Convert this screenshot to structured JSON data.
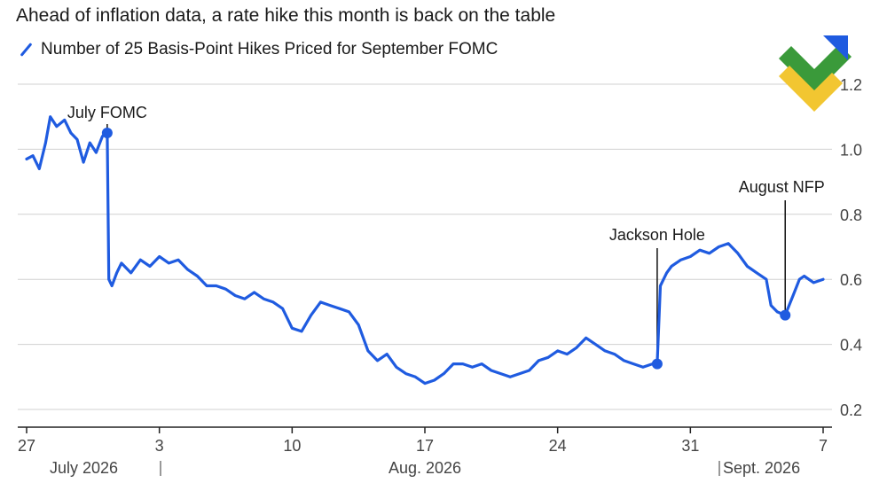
{
  "title": "Ahead of inflation data, a rate hike this month is back on the table",
  "legend": {
    "label": "Number of 25 Basis-Point Hikes Priced for September FOMC"
  },
  "colors": {
    "line": "#1f5be0",
    "grid": "#d0d0d0",
    "text": "#1a1a1a",
    "muted": "#444444"
  },
  "chart_data": {
    "type": "line",
    "title": "Ahead of inflation data, a rate hike this month is back on the table",
    "series": [
      {
        "name": "Number of 25 Basis-Point Hikes Priced for September FOMC",
        "points": [
          [
            "2026-07-27",
            0.97
          ],
          [
            "2026-07-27T08",
            0.98
          ],
          [
            "2026-07-27T16",
            0.94
          ],
          [
            "2026-07-28",
            1.02
          ],
          [
            "2026-07-28T06",
            1.1
          ],
          [
            "2026-07-28T14",
            1.07
          ],
          [
            "2026-07-29",
            1.09
          ],
          [
            "2026-07-29T08",
            1.05
          ],
          [
            "2026-07-29T16",
            1.03
          ],
          [
            "2026-07-30",
            0.96
          ],
          [
            "2026-07-30T08",
            1.02
          ],
          [
            "2026-07-30T16",
            0.99
          ],
          [
            "2026-07-31",
            1.04
          ],
          [
            "2026-07-31T06",
            1.05
          ],
          [
            "2026-07-31T08",
            0.6
          ],
          [
            "2026-07-31T12",
            0.58
          ],
          [
            "2026-07-31T18",
            0.62
          ],
          [
            "2026-08-01",
            0.65
          ],
          [
            "2026-08-01T12",
            0.62
          ],
          [
            "2026-08-02",
            0.66
          ],
          [
            "2026-08-02T12",
            0.64
          ],
          [
            "2026-08-03",
            0.67
          ],
          [
            "2026-08-03T12",
            0.65
          ],
          [
            "2026-08-04",
            0.66
          ],
          [
            "2026-08-04T12",
            0.63
          ],
          [
            "2026-08-05",
            0.61
          ],
          [
            "2026-08-05T12",
            0.58
          ],
          [
            "2026-08-06",
            0.58
          ],
          [
            "2026-08-06T12",
            0.57
          ],
          [
            "2026-08-07",
            0.55
          ],
          [
            "2026-08-07T12",
            0.54
          ],
          [
            "2026-08-08",
            0.56
          ],
          [
            "2026-08-08T12",
            0.54
          ],
          [
            "2026-08-09",
            0.53
          ],
          [
            "2026-08-09T12",
            0.51
          ],
          [
            "2026-08-10",
            0.45
          ],
          [
            "2026-08-10T12",
            0.44
          ],
          [
            "2026-08-11",
            0.49
          ],
          [
            "2026-08-11T12",
            0.53
          ],
          [
            "2026-08-12",
            0.52
          ],
          [
            "2026-08-12T12",
            0.51
          ],
          [
            "2026-08-13",
            0.5
          ],
          [
            "2026-08-13T12",
            0.46
          ],
          [
            "2026-08-14",
            0.38
          ],
          [
            "2026-08-14T12",
            0.35
          ],
          [
            "2026-08-15",
            0.37
          ],
          [
            "2026-08-15T12",
            0.33
          ],
          [
            "2026-08-16",
            0.31
          ],
          [
            "2026-08-16T12",
            0.3
          ],
          [
            "2026-08-17",
            0.28
          ],
          [
            "2026-08-17T12",
            0.29
          ],
          [
            "2026-08-18",
            0.31
          ],
          [
            "2026-08-18T12",
            0.34
          ],
          [
            "2026-08-19",
            0.34
          ],
          [
            "2026-08-19T12",
            0.33
          ],
          [
            "2026-08-20",
            0.34
          ],
          [
            "2026-08-20T12",
            0.32
          ],
          [
            "2026-08-21",
            0.31
          ],
          [
            "2026-08-21T12",
            0.3
          ],
          [
            "2026-08-22",
            0.31
          ],
          [
            "2026-08-22T12",
            0.32
          ],
          [
            "2026-08-23",
            0.35
          ],
          [
            "2026-08-23T12",
            0.36
          ],
          [
            "2026-08-24",
            0.38
          ],
          [
            "2026-08-24T12",
            0.37
          ],
          [
            "2026-08-25",
            0.39
          ],
          [
            "2026-08-25T12",
            0.42
          ],
          [
            "2026-08-26",
            0.4
          ],
          [
            "2026-08-26T12",
            0.38
          ],
          [
            "2026-08-27",
            0.37
          ],
          [
            "2026-08-27T12",
            0.35
          ],
          [
            "2026-08-28",
            0.34
          ],
          [
            "2026-08-28T12",
            0.33
          ],
          [
            "2026-08-29",
            0.34
          ],
          [
            "2026-08-29T06",
            0.34
          ],
          [
            "2026-08-29T10",
            0.58
          ],
          [
            "2026-08-29T18",
            0.62
          ],
          [
            "2026-08-30",
            0.64
          ],
          [
            "2026-08-30T12",
            0.66
          ],
          [
            "2026-08-31",
            0.67
          ],
          [
            "2026-08-31T12",
            0.69
          ],
          [
            "2026-09-01",
            0.68
          ],
          [
            "2026-09-01T12",
            0.7
          ],
          [
            "2026-09-02",
            0.71
          ],
          [
            "2026-09-02T12",
            0.68
          ],
          [
            "2026-09-03",
            0.64
          ],
          [
            "2026-09-03T12",
            0.62
          ],
          [
            "2026-09-04",
            0.6
          ],
          [
            "2026-09-04T06",
            0.52
          ],
          [
            "2026-09-04T14",
            0.5
          ],
          [
            "2026-09-05",
            0.49
          ],
          [
            "2026-09-05T10",
            0.55
          ],
          [
            "2026-09-05T18",
            0.6
          ],
          [
            "2026-09-06",
            0.61
          ],
          [
            "2026-09-06T12",
            0.59
          ],
          [
            "2026-09-07",
            0.6
          ]
        ]
      }
    ],
    "markers": [
      {
        "label": "July FOMC",
        "date": "2026-07-31T06",
        "value": 1.05
      },
      {
        "label": "Jackson Hole",
        "date": "2026-08-29T06",
        "value": 0.34
      },
      {
        "label": "August NFP",
        "date": "2026-09-05",
        "value": 0.49
      }
    ],
    "ylim": [
      0.2,
      1.2
    ],
    "yticks": [
      0.2,
      0.4,
      0.6,
      0.8,
      1.0,
      1.2
    ],
    "ytick_labels": [
      "0.2",
      "0.4",
      "0.6",
      "0.8",
      "1.0",
      "1.2"
    ],
    "xticks": [
      {
        "date": "2026-07-27",
        "label": "27"
      },
      {
        "date": "2026-08-03",
        "label": "3"
      },
      {
        "date": "2026-08-10",
        "label": "10"
      },
      {
        "date": "2026-08-17",
        "label": "17"
      },
      {
        "date": "2026-08-24",
        "label": "24"
      },
      {
        "date": "2026-08-31",
        "label": "31"
      },
      {
        "date": "2026-09-07",
        "label": "7"
      }
    ],
    "month_labels": [
      {
        "label": "July 2026",
        "date": "2026-07-29"
      },
      {
        "label": "Aug. 2026",
        "date": "2026-08-17"
      },
      {
        "label": "Sept. 2026",
        "date": "2026-09-04"
      }
    ],
    "grid": true
  }
}
